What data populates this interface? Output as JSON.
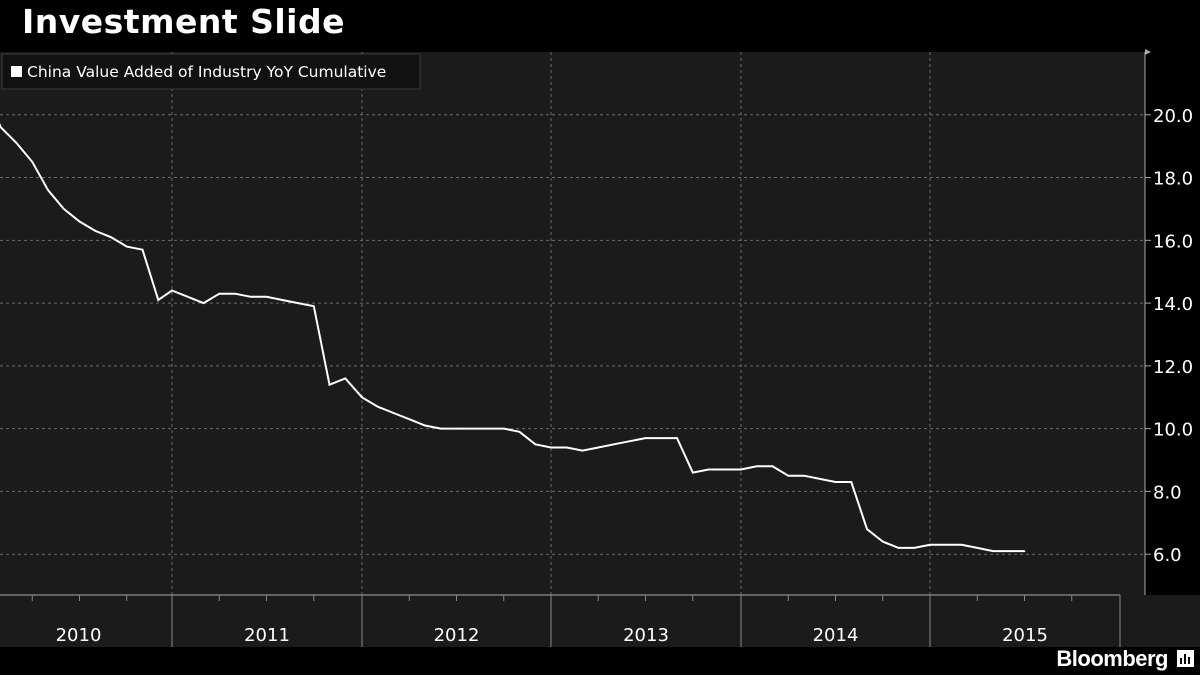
{
  "header": {
    "title": "Investment Slide"
  },
  "footer": {
    "brand": "Bloomberg",
    "brand_icon": "bloomberg-chart-icon"
  },
  "colors": {
    "background": "#000000",
    "plot_background": "#1b1b1b",
    "line": "#ffffff",
    "grid": "#6a6a6a"
  },
  "chart_data": {
    "type": "line",
    "title": "Investment Slide",
    "xlabel": "",
    "ylabel": "",
    "legend": {
      "position": "top-left",
      "entries": [
        "China Value Added of Industry YoY Cumulative"
      ]
    },
    "x_tick_labels": [
      "2010",
      "2011",
      "2012",
      "2013",
      "2014",
      "2015"
    ],
    "y_ticks": [
      6.0,
      8.0,
      10.0,
      12.0,
      14.0,
      16.0,
      18.0,
      20.0
    ],
    "ylim": [
      4.7,
      22.0
    ],
    "xlim": [
      "2010-01",
      "2015-12"
    ],
    "y_axis_position": "right",
    "grid": true,
    "series": [
      {
        "name": "China Value Added of Industry YoY Cumulative",
        "color": "#ffffff",
        "points": [
          [
            "2010-01",
            20.7
          ],
          [
            "2010-02",
            19.6
          ],
          [
            "2010-03",
            19.1
          ],
          [
            "2010-04",
            18.5
          ],
          [
            "2010-05",
            17.6
          ],
          [
            "2010-06",
            17.0
          ],
          [
            "2010-07",
            16.6
          ],
          [
            "2010-08",
            16.3
          ],
          [
            "2010-09",
            16.1
          ],
          [
            "2010-10",
            15.8
          ],
          [
            "2010-11",
            15.7
          ],
          [
            "2010-12",
            14.1
          ],
          [
            "2011-01",
            14.4
          ],
          [
            "2011-02",
            14.2
          ],
          [
            "2011-03",
            14.0
          ],
          [
            "2011-04",
            14.3
          ],
          [
            "2011-05",
            14.3
          ],
          [
            "2011-06",
            14.2
          ],
          [
            "2011-07",
            14.2
          ],
          [
            "2011-08",
            14.1
          ],
          [
            "2011-09",
            14.0
          ],
          [
            "2011-10",
            13.9
          ],
          [
            "2011-11",
            11.4
          ],
          [
            "2011-12",
            11.6
          ],
          [
            "2012-01",
            11.0
          ],
          [
            "2012-02",
            10.7
          ],
          [
            "2012-03",
            10.5
          ],
          [
            "2012-04",
            10.3
          ],
          [
            "2012-05",
            10.1
          ],
          [
            "2012-06",
            10.0
          ],
          [
            "2012-07",
            10.0
          ],
          [
            "2012-08",
            10.0
          ],
          [
            "2012-09",
            10.0
          ],
          [
            "2012-10",
            10.0
          ],
          [
            "2012-11",
            9.9
          ],
          [
            "2012-12",
            9.5
          ],
          [
            "2013-01",
            9.4
          ],
          [
            "2013-02",
            9.4
          ],
          [
            "2013-03",
            9.3
          ],
          [
            "2013-04",
            9.4
          ],
          [
            "2013-05",
            9.5
          ],
          [
            "2013-06",
            9.6
          ],
          [
            "2013-07",
            9.7
          ],
          [
            "2013-08",
            9.7
          ],
          [
            "2013-09",
            9.7
          ],
          [
            "2013-10",
            8.6
          ],
          [
            "2013-11",
            8.7
          ],
          [
            "2013-12",
            8.7
          ],
          [
            "2014-01",
            8.7
          ],
          [
            "2014-02",
            8.8
          ],
          [
            "2014-03",
            8.8
          ],
          [
            "2014-04",
            8.5
          ],
          [
            "2014-05",
            8.5
          ],
          [
            "2014-06",
            8.4
          ],
          [
            "2014-07",
            8.3
          ],
          [
            "2014-08",
            8.3
          ],
          [
            "2014-09",
            6.8
          ],
          [
            "2014-10",
            6.4
          ],
          [
            "2014-11",
            6.2
          ],
          [
            "2014-12",
            6.2
          ],
          [
            "2015-01",
            6.3
          ],
          [
            "2015-02",
            6.3
          ],
          [
            "2015-03",
            6.3
          ],
          [
            "2015-04",
            6.2
          ],
          [
            "2015-05",
            6.1
          ],
          [
            "2015-06",
            6.1
          ],
          [
            "2015-07",
            6.1
          ]
        ]
      }
    ]
  }
}
